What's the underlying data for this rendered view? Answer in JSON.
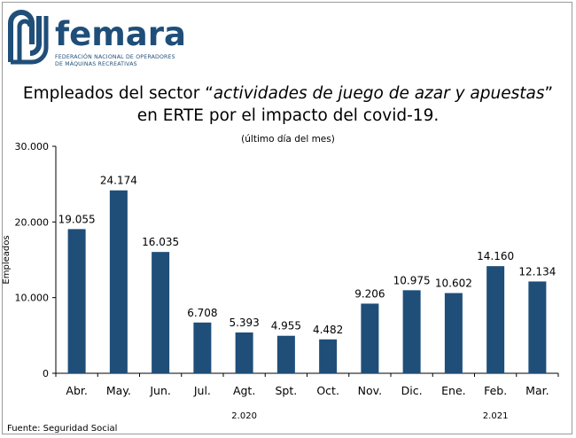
{
  "logo": {
    "word": "femara",
    "line1": "FEDERACIÓN NACIONAL DE OPERADORES",
    "line2": "DE MÁQUINAS RECREATIVAS"
  },
  "title": {
    "part1": "Empleados del sector “",
    "italic": "actividades de juego de azar y apuestas",
    "part2": "” en ERTE por el impacto del covid-19."
  },
  "subtitle": "(último día del mes)",
  "source": "Fuente: Seguridad Social",
  "colors": {
    "bar": "#1f4e79",
    "frame": "#9a9a9a",
    "logo": "#1f4e79"
  },
  "chart_data": {
    "type": "bar",
    "categories": [
      "Abr.",
      "May.",
      "Jun.",
      "Jul.",
      "Agt.",
      "Spt.",
      "Oct.",
      "Nov.",
      "Dic.",
      "Ene.",
      "Feb.",
      "Mar."
    ],
    "values": [
      19055,
      24174,
      16035,
      6708,
      5393,
      4955,
      4482,
      9206,
      10975,
      10602,
      14160,
      12134
    ],
    "value_labels": [
      "19.055",
      "24.174",
      "16.035",
      "6.708",
      "5.393",
      "4.955",
      "4.482",
      "9.206",
      "10.975",
      "10.602",
      "14.160",
      "12.134"
    ],
    "ylabel": "Empleados",
    "ylim": [
      0,
      30000
    ],
    "yticks": [
      0,
      10000,
      20000,
      30000
    ],
    "ytick_labels": [
      "0",
      "10.000",
      "20.000",
      "30.000"
    ],
    "year_groups": [
      {
        "label": "2.020",
        "from": "Abr.",
        "to": "Dic."
      },
      {
        "label": "2.021",
        "from": "Ene.",
        "to": "Mar."
      }
    ],
    "grid": false,
    "legend": "none"
  }
}
